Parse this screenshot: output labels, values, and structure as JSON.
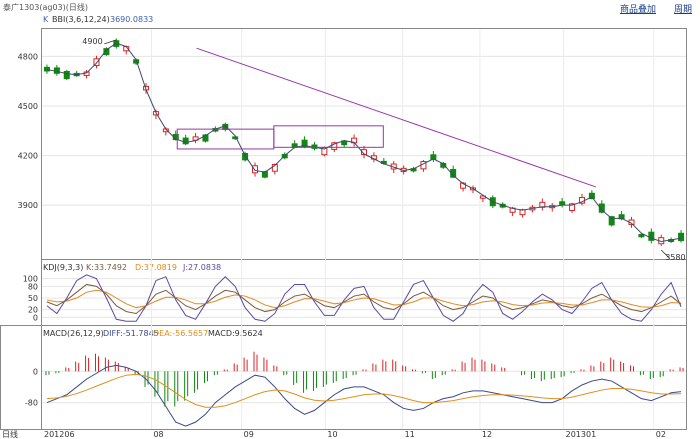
{
  "window": {
    "title": "泰广1303(ag03)(日线)"
  },
  "header": {
    "product_button": "商品叠加",
    "period_button": "周期"
  },
  "panels": {
    "main": {
      "indicator_prefix": "K",
      "indicator_label": "BBI(3,6,12,24)",
      "indicator_value": "3690.0833"
    },
    "kdj": {
      "label": "KDJ(9,3,3)",
      "k": "K:33.7492",
      "d": "D:37.0819",
      "j": "J:27.0838"
    },
    "macd": {
      "label": "MACD(26,12,9)",
      "diff": "DIFF:-51.7845",
      "dea": "DEA:-56.5657",
      "macd": "MACD:9.5624"
    }
  },
  "footer": {
    "period_label": "日线"
  },
  "colors": {
    "up": "#dd2222",
    "down": "#118811",
    "bbi": "#3a4a6a",
    "trend": "#9933aa",
    "k": "#7a5a3a",
    "d": "#e08a20",
    "j": "#5a4aa0",
    "diff": "#3a4a8a",
    "dea": "#e09020",
    "title": "#3a62b0",
    "axis": "#333333"
  },
  "chart_data": [
    {
      "type": "candlestick",
      "name": "K-line",
      "y_ticks": [
        4800,
        4500,
        4200,
        3900
      ],
      "ylim": [
        3580,
        4960
      ],
      "x_ticks": [
        "201206",
        "08",
        "09",
        "10",
        "11",
        "12",
        "201301",
        "02"
      ],
      "annotations": {
        "high_label": "4900",
        "low_label": "3580",
        "high": 4900,
        "low": 3580
      },
      "trendline": [
        [
          0.24,
          4850
        ],
        [
          0.86,
          4010
        ]
      ],
      "rectangles": [
        {
          "x": [
            0.21,
            0.36
          ],
          "y": [
            4240,
            4360
          ]
        },
        {
          "x": [
            0.36,
            0.53
          ],
          "y": [
            4250,
            4380
          ]
        }
      ],
      "bbi_series": [
        4720,
        4710,
        4695,
        4690,
        4700,
        4760,
        4840,
        4880,
        4860,
        4780,
        4600,
        4460,
        4360,
        4300,
        4280,
        4290,
        4320,
        4360,
        4380,
        4320,
        4200,
        4110,
        4100,
        4140,
        4200,
        4250,
        4260,
        4250,
        4240,
        4270,
        4290,
        4280,
        4210,
        4180,
        4150,
        4130,
        4110,
        4120,
        4150,
        4180,
        4150,
        4080,
        4030,
        4000,
        3960,
        3920,
        3900,
        3880,
        3870,
        3880,
        3890,
        3890,
        3900,
        3900,
        3920,
        3950,
        3870,
        3820,
        3820,
        3790,
        3730,
        3700,
        3680,
        3690,
        3700
      ]
    },
    {
      "type": "line",
      "name": "KDJ",
      "y_ticks": [
        100,
        80,
        50,
        20,
        0
      ],
      "ylim": [
        -12,
        112
      ],
      "series": [
        {
          "name": "K",
          "values": [
            40,
            30,
            45,
            65,
            85,
            80,
            60,
            30,
            15,
            10,
            30,
            60,
            70,
            50,
            30,
            20,
            35,
            55,
            70,
            65,
            45,
            25,
            15,
            20,
            40,
            55,
            60,
            45,
            30,
            25,
            40,
            55,
            60,
            40,
            25,
            20,
            35,
            55,
            65,
            50,
            30,
            20,
            25,
            40,
            55,
            50,
            30,
            20,
            25,
            35,
            45,
            40,
            30,
            25,
            35,
            50,
            60,
            45,
            30,
            20,
            15,
            25,
            40,
            55,
            34
          ]
        },
        {
          "name": "D",
          "values": [
            45,
            40,
            42,
            50,
            65,
            70,
            65,
            50,
            35,
            25,
            30,
            42,
            52,
            52,
            45,
            35,
            35,
            42,
            52,
            58,
            55,
            45,
            32,
            25,
            30,
            40,
            48,
            48,
            42,
            35,
            38,
            45,
            50,
            48,
            40,
            32,
            33,
            40,
            50,
            50,
            42,
            35,
            30,
            33,
            40,
            43,
            40,
            33,
            30,
            32,
            37,
            38,
            36,
            32,
            32,
            38,
            45,
            45,
            40,
            33,
            27,
            26,
            30,
            38,
            37
          ]
        },
        {
          "name": "J",
          "values": [
            30,
            10,
            50,
            95,
            110,
            100,
            50,
            -5,
            -10,
            -10,
            30,
            95,
            105,
            45,
            5,
            -5,
            35,
            80,
            105,
            80,
            25,
            -5,
            -10,
            10,
            60,
            85,
            85,
            40,
            5,
            5,
            45,
            75,
            80,
            25,
            -5,
            -5,
            40,
            85,
            95,
            50,
            5,
            -10,
            10,
            55,
            85,
            65,
            10,
            -5,
            15,
            40,
            60,
            45,
            20,
            10,
            40,
            75,
            90,
            45,
            10,
            -5,
            -10,
            20,
            60,
            90,
            27
          ]
        }
      ]
    },
    {
      "type": "bar+line",
      "name": "MACD",
      "y_ticks": [
        0,
        -80
      ],
      "ylim": [
        -145,
        80
      ],
      "histogram": [
        -10,
        -5,
        10,
        25,
        40,
        45,
        35,
        25,
        10,
        -10,
        -40,
        -65,
        -90,
        -90,
        -75,
        -55,
        -30,
        -10,
        5,
        20,
        35,
        50,
        35,
        15,
        -10,
        -35,
        -55,
        -50,
        -40,
        -30,
        -20,
        -10,
        5,
        20,
        30,
        30,
        15,
        5,
        -5,
        -20,
        -10,
        5,
        25,
        35,
        30,
        20,
        10,
        0,
        -10,
        -20,
        -25,
        -20,
        -15,
        -5,
        5,
        15,
        25,
        35,
        25,
        15,
        -10,
        -20,
        -15,
        5,
        10
      ],
      "series": [
        {
          "name": "DIFF",
          "values": [
            -80,
            -70,
            -60,
            -40,
            -20,
            -5,
            10,
            15,
            10,
            0,
            -20,
            -50,
            -90,
            -130,
            -140,
            -130,
            -110,
            -80,
            -60,
            -40,
            -25,
            -10,
            -15,
            -40,
            -70,
            -95,
            -110,
            -100,
            -80,
            -60,
            -45,
            -40,
            -40,
            -50,
            -60,
            -80,
            -95,
            -100,
            -95,
            -80,
            -70,
            -65,
            -55,
            -50,
            -50,
            -55,
            -60,
            -65,
            -70,
            -75,
            -80,
            -80,
            -70,
            -50,
            -35,
            -25,
            -20,
            -25,
            -40,
            -55,
            -70,
            -75,
            -65,
            -55,
            -52
          ]
        },
        {
          "name": "DEA",
          "values": [
            -70,
            -68,
            -64,
            -57,
            -48,
            -38,
            -28,
            -18,
            -10,
            -8,
            -12,
            -22,
            -38,
            -55,
            -72,
            -85,
            -92,
            -92,
            -88,
            -80,
            -70,
            -60,
            -52,
            -48,
            -50,
            -58,
            -68,
            -74,
            -76,
            -74,
            -70,
            -65,
            -60,
            -58,
            -58,
            -62,
            -68,
            -75,
            -80,
            -80,
            -78,
            -75,
            -70,
            -65,
            -62,
            -60,
            -60,
            -61,
            -63,
            -65,
            -68,
            -70,
            -70,
            -66,
            -60,
            -54,
            -48,
            -44,
            -44,
            -46,
            -50,
            -55,
            -58,
            -58,
            -57
          ]
        }
      ]
    }
  ]
}
